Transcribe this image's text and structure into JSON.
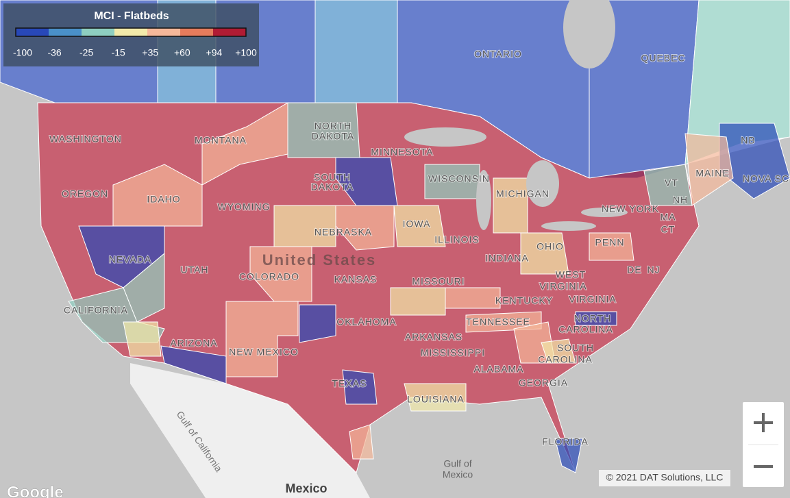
{
  "legend": {
    "title": "MCI - Flatbeds",
    "ticks": [
      "-100",
      "-36",
      "-25",
      "-15",
      "+35",
      "+60",
      "+94",
      "+100"
    ],
    "colors": [
      "#2848b8",
      "#4a90c8",
      "#8ecfc0",
      "#f2eaaa",
      "#f5b89a",
      "#e57c5c",
      "#b01c34"
    ]
  },
  "map": {
    "labels": [
      "ONTARIO",
      "QUEBEC",
      "NORTH",
      "DAKOTA",
      "WASHINGTON",
      "MONTANA",
      "MINNESOTA",
      "SOUTH",
      "DAKOTA",
      "WISCONSIN",
      "MICHIGAN",
      "OREGON",
      "IDAHO",
      "WYOMING",
      "NEW YORK",
      "IOWA",
      "NEBRASKA",
      "PENN",
      "NEVADA",
      "ILLINOIS",
      "INDIANA",
      "OHIO",
      "COLORADO",
      "KANSAS",
      "MISSOURI",
      "WEST",
      "VIRGINIA",
      "UTAH",
      "CALIFORNIA",
      "KENTUCKY",
      "VIRGINIA",
      "OKLAHOMA",
      "TENNESSEE",
      "NORTH",
      "CAROLINA",
      "ARKANSAS",
      "ARIZONA",
      "NEW MEXICO",
      "SOUTH",
      "CAROLINA",
      "MISSISSIPPI",
      "ALABAMA",
      "TEXAS",
      "GEORGIA",
      "LOUISIANA",
      "FLORIDA",
      "MAINE",
      "NB",
      "NOVA SC",
      "VT",
      "NH",
      "MA",
      "CT",
      "DE",
      "NJ"
    ],
    "country": "United States",
    "mexico": "Mexico",
    "gulf_mexico": [
      "Gulf of",
      "Mexico"
    ],
    "gulf_california": "Gulf of California"
  },
  "footer": {
    "copyright": "© 2021 DAT Solutions, LLC",
    "logo": "Google"
  }
}
